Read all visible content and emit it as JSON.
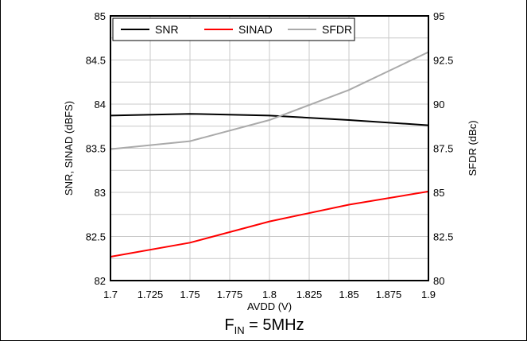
{
  "chart_data": {
    "type": "line",
    "xlabel": "AVDD (V)",
    "ylabel_left": "SNR, SINAD (dBFS)",
    "ylabel_right": "SFDR (dBc)",
    "xlim": [
      1.7,
      1.9
    ],
    "ylim_left": [
      82,
      85
    ],
    "ylim_right": [
      80,
      95
    ],
    "x_ticks": [
      "1.7",
      "1.725",
      "1.75",
      "1.775",
      "1.8",
      "1.825",
      "1.85",
      "1.875",
      "1.9"
    ],
    "y_left_ticks": [
      "82",
      "82.5",
      "83",
      "83.5",
      "84",
      "84.5",
      "85"
    ],
    "y_right_ticks": [
      "80",
      "82.5",
      "85",
      "87.5",
      "90",
      "92.5",
      "95"
    ],
    "grid": true,
    "legend_position": "top-left",
    "series": [
      {
        "name": "SNR",
        "axis": "left",
        "color": "#000000",
        "x": [
          1.7,
          1.75,
          1.8,
          1.85,
          1.9
        ],
        "y": [
          83.87,
          83.89,
          83.87,
          83.82,
          83.76
        ]
      },
      {
        "name": "SINAD",
        "axis": "left",
        "color": "#ff0000",
        "x": [
          1.7,
          1.75,
          1.8,
          1.85,
          1.9
        ],
        "y": [
          82.27,
          82.43,
          82.67,
          82.86,
          83.01
        ]
      },
      {
        "name": "SFDR",
        "axis": "right",
        "color": "#aaaaaa",
        "x": [
          1.7,
          1.75,
          1.8,
          1.85,
          1.9
        ],
        "y": [
          87.45,
          87.9,
          89.1,
          90.8,
          92.95
        ]
      }
    ]
  },
  "caption": {
    "main": "F",
    "sub": "IN",
    "rest": " = 5MHz"
  }
}
